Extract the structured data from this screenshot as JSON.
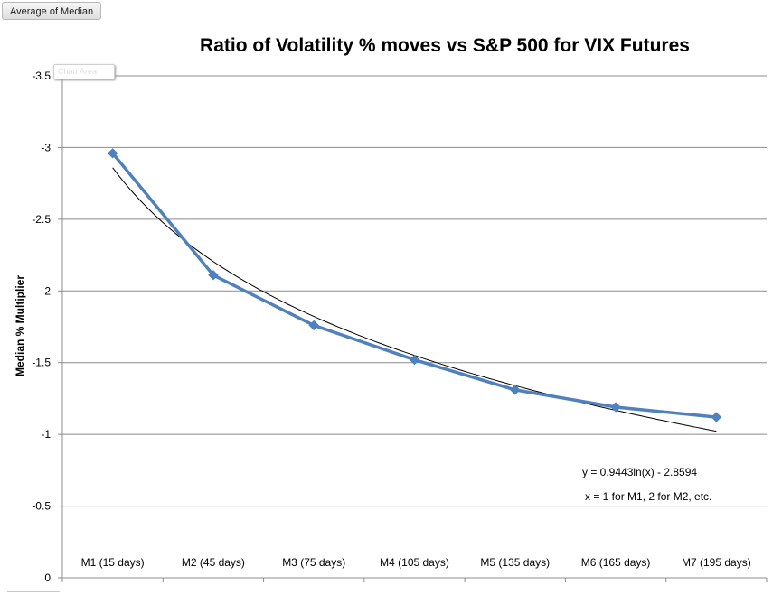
{
  "field_button": {
    "label": "Average of Median"
  },
  "chart_area_tooltip": {
    "label": "Chart Area"
  },
  "chart_data": {
    "type": "line",
    "title": "Ratio of  Volatility % moves vs S&P 500 for VIX Futures",
    "xlabel": "",
    "ylabel": "Median % Multiplier",
    "categories": [
      "M1 (15 days)",
      "M2 (45 days)",
      "M3 (75 days)",
      "M4 (105 days)",
      "M5 (135 days)",
      "M6 (165 days)",
      "M7 (195 days)"
    ],
    "series": [
      {
        "values": [
          -2.96,
          -2.11,
          -1.76,
          -1.52,
          -1.31,
          -1.19,
          -1.12
        ],
        "color": "#4f81bd",
        "marker": "diamond"
      }
    ],
    "trendline": {
      "type": "logarithmic",
      "slope": 0.9443,
      "intercept": -2.8594,
      "color": "#000000"
    },
    "ylim": [
      0,
      -3.5
    ],
    "y_ticks": [
      "-3.5",
      "-3",
      "-2.5",
      "-2",
      "-1.5",
      "-1",
      "-0.5",
      "0"
    ],
    "y_axis_reversed": true,
    "grid": true,
    "annotations": [
      "y = 0.9443ln(x) - 2.8594",
      "x = 1 for M1, 2 for M2, etc."
    ]
  }
}
